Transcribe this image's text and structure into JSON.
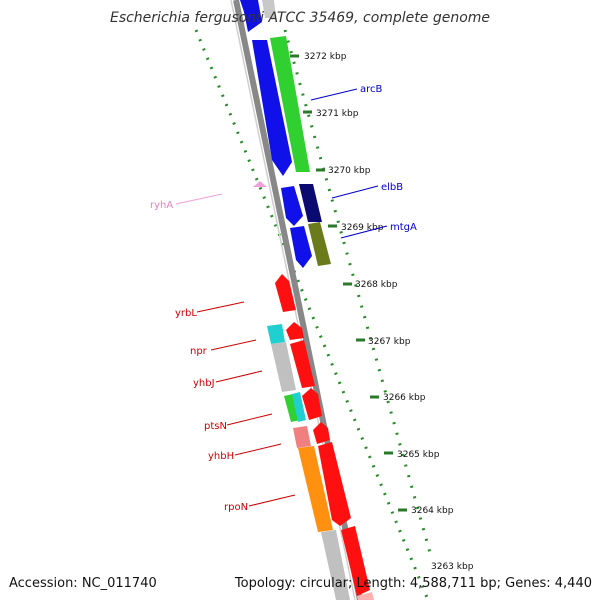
{
  "title": "Escherichia fergusonii ATCC 35469, complete genome",
  "footer": {
    "accession": "Accession: NC_011740",
    "summary": "Topology: circular; Length: 4,588,711 bp; Genes: 4,440"
  },
  "colors": {
    "backbone": "#808080",
    "tick": "#2a7a2a",
    "dotted_ring": "#2a8a2a",
    "blue_label": "#0000cc",
    "red_label": "#cc0000",
    "pink_label": "#e080c0"
  },
  "ticks": [
    "3272 kbp",
    "3271 kbp",
    "3270 kbp",
    "3269 kbp",
    "3268 kbp",
    "3267 kbp",
    "3266 kbp",
    "3265 kbp",
    "3264 kbp",
    "3263 kbp"
  ],
  "gene_labels": [
    {
      "text": "arcB",
      "color": "#0000cc"
    },
    {
      "text": "elbB",
      "color": "#0000cc"
    },
    {
      "text": "mtgA",
      "color": "#0000cc"
    },
    {
      "text": "ryhA",
      "color": "#e080c0"
    },
    {
      "text": "yrbL",
      "color": "#cc0000"
    },
    {
      "text": "npr",
      "color": "#cc0000"
    },
    {
      "text": "yhbJ",
      "color": "#cc0000"
    },
    {
      "text": "ptsN",
      "color": "#cc0000"
    },
    {
      "text": "yhbH",
      "color": "#cc0000"
    },
    {
      "text": "rpoN",
      "color": "#cc0000"
    }
  ]
}
